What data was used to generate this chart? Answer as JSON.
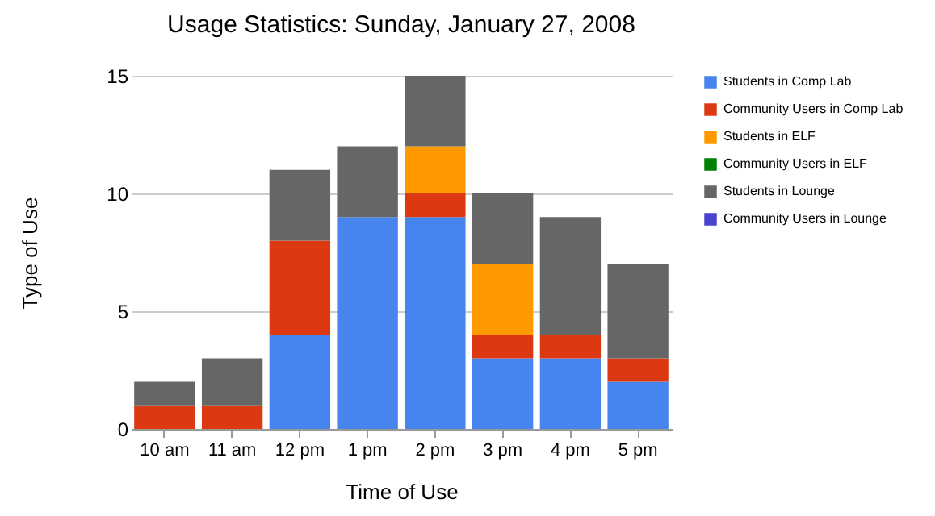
{
  "chart_data": {
    "type": "bar",
    "stacked": true,
    "title": "Usage Statistics: Sunday, January 27, 2008",
    "xlabel": "Time of Use",
    "ylabel": "Type of Use",
    "categories": [
      "10 am",
      "11 am",
      "12 pm",
      "1 pm",
      "2 pm",
      "3 pm",
      "4 pm",
      "5 pm"
    ],
    "series": [
      {
        "name": "Students in Comp Lab",
        "color": "#4684ee",
        "values": [
          0,
          0,
          4,
          9,
          9,
          3,
          3,
          2
        ]
      },
      {
        "name": "Community Users in Comp Lab",
        "color": "#dc3912",
        "values": [
          1,
          1,
          4,
          0,
          1,
          1,
          1,
          1
        ]
      },
      {
        "name": "Students in ELF",
        "color": "#ff9900",
        "values": [
          0,
          0,
          0,
          0,
          2,
          3,
          0,
          0
        ]
      },
      {
        "name": "Community Users in ELF",
        "color": "#008000",
        "values": [
          0,
          0,
          0,
          0,
          0,
          0,
          0,
          0
        ]
      },
      {
        "name": "Students in Lounge",
        "color": "#666666",
        "values": [
          1,
          2,
          3,
          3,
          3,
          3,
          5,
          4
        ]
      },
      {
        "name": "Community Users in Lounge",
        "color": "#4942cc",
        "values": [
          0,
          0,
          0,
          0,
          0,
          0,
          0,
          0
        ]
      }
    ],
    "ylim": [
      0,
      15
    ],
    "yticks": [
      0,
      5,
      10,
      15
    ],
    "grid": "y",
    "legend": "right"
  }
}
